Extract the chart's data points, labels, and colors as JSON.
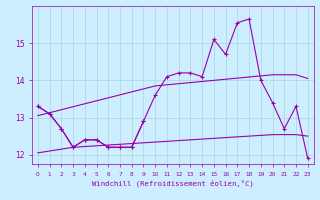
{
  "xlabel": "Windchill (Refroidissement éolien,°C)",
  "x": [
    0,
    1,
    2,
    3,
    4,
    5,
    6,
    7,
    8,
    9,
    10,
    11,
    12,
    13,
    14,
    15,
    16,
    17,
    18,
    19,
    20,
    21,
    22,
    23
  ],
  "line_main": [
    13.3,
    13.1,
    12.7,
    12.2,
    12.4,
    12.4,
    12.2,
    12.2,
    12.2,
    12.9,
    13.6,
    14.1,
    14.2,
    14.2,
    14.1,
    15.1,
    14.7,
    15.55,
    15.65,
    14.0,
    13.4,
    12.7,
    13.3,
    11.9
  ],
  "line_lower": [
    13.3,
    13.1,
    12.7,
    12.2,
    12.4,
    12.4,
    12.2,
    12.2,
    12.2,
    12.9,
    null,
    null,
    null,
    null,
    null,
    null,
    null,
    null,
    null,
    null,
    null,
    null,
    null,
    null
  ],
  "line_reg_upper": [
    13.05,
    13.13,
    13.21,
    13.29,
    13.37,
    13.45,
    13.53,
    13.61,
    13.69,
    13.77,
    13.85,
    13.88,
    13.91,
    13.94,
    13.97,
    14.0,
    14.03,
    14.06,
    14.09,
    14.12,
    14.15,
    14.15,
    14.15,
    14.05
  ],
  "line_reg_lower": [
    12.05,
    12.1,
    12.15,
    12.2,
    12.22,
    12.24,
    12.26,
    12.28,
    12.3,
    12.32,
    12.34,
    12.36,
    12.38,
    12.4,
    12.42,
    12.44,
    12.46,
    12.48,
    12.5,
    12.52,
    12.54,
    12.54,
    12.54,
    12.5
  ],
  "line_color": "#9900aa",
  "bg_color": "#cceeff",
  "grid_color": "#aad4dd",
  "ylim": [
    11.75,
    16.0
  ],
  "yticks": [
    12,
    13,
    14,
    15
  ],
  "xlim": [
    -0.5,
    23.5
  ],
  "xticks": [
    0,
    1,
    2,
    3,
    4,
    5,
    6,
    7,
    8,
    9,
    10,
    11,
    12,
    13,
    14,
    15,
    16,
    17,
    18,
    19,
    20,
    21,
    22,
    23
  ]
}
